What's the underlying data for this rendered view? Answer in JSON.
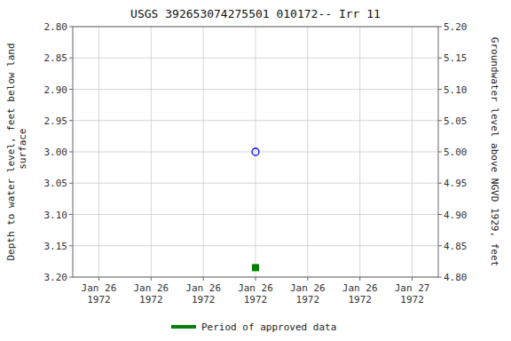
{
  "chart_data": {
    "type": "scatter",
    "title": "USGS 392653074275501 010172-- Irr 11",
    "ylabel": "Depth to water level, feet below land\n surface",
    "y2label": "Groundwater level above NGVD 1929, feet",
    "categories": [
      "Jan 26\n1972",
      "Jan 26\n1972",
      "Jan 26\n1972",
      "Jan 26\n1972",
      "Jan 26\n1972",
      "Jan 26\n1972",
      "Jan 27\n1972"
    ],
    "series": [
      {
        "color": "blue",
        "marker": "circle",
        "values": [
          null,
          null,
          null,
          3.0,
          null,
          null,
          null
        ]
      },
      {
        "name": "Period of approved data",
        "color": "#008000",
        "marker": "square",
        "values": [
          null,
          null,
          null,
          3.185,
          null,
          null,
          null
        ]
      }
    ],
    "ylim": [
      3.2,
      2.8
    ],
    "yticks": [
      {
        "value": 2.8,
        "label": "2.80"
      },
      {
        "value": 2.85,
        "label": "2.85"
      },
      {
        "value": 2.9,
        "label": "2.90"
      },
      {
        "value": 2.95,
        "label": "2.95"
      },
      {
        "value": 3.0,
        "label": "3.00"
      },
      {
        "value": 3.05,
        "label": "3.05"
      },
      {
        "value": 3.1,
        "label": "3.10"
      },
      {
        "value": 3.15,
        "label": "3.15"
      },
      {
        "value": 3.2,
        "label": "3.20"
      }
    ],
    "y2lim": [
      4.8,
      5.2
    ],
    "y2ticks": [
      {
        "value": 4.8,
        "label": "4.80"
      },
      {
        "value": 4.85,
        "label": "4.85"
      },
      {
        "value": 4.9,
        "label": "4.90"
      },
      {
        "value": 4.95,
        "label": "4.95"
      },
      {
        "value": 5.0,
        "label": "5.00"
      },
      {
        "value": 5.05,
        "label": "5.05"
      },
      {
        "value": 5.1,
        "label": "5.10"
      },
      {
        "value": 5.15,
        "label": "5.15"
      },
      {
        "value": 5.2,
        "label": "5.20"
      }
    ],
    "grid": true,
    "legend": "bottom"
  }
}
